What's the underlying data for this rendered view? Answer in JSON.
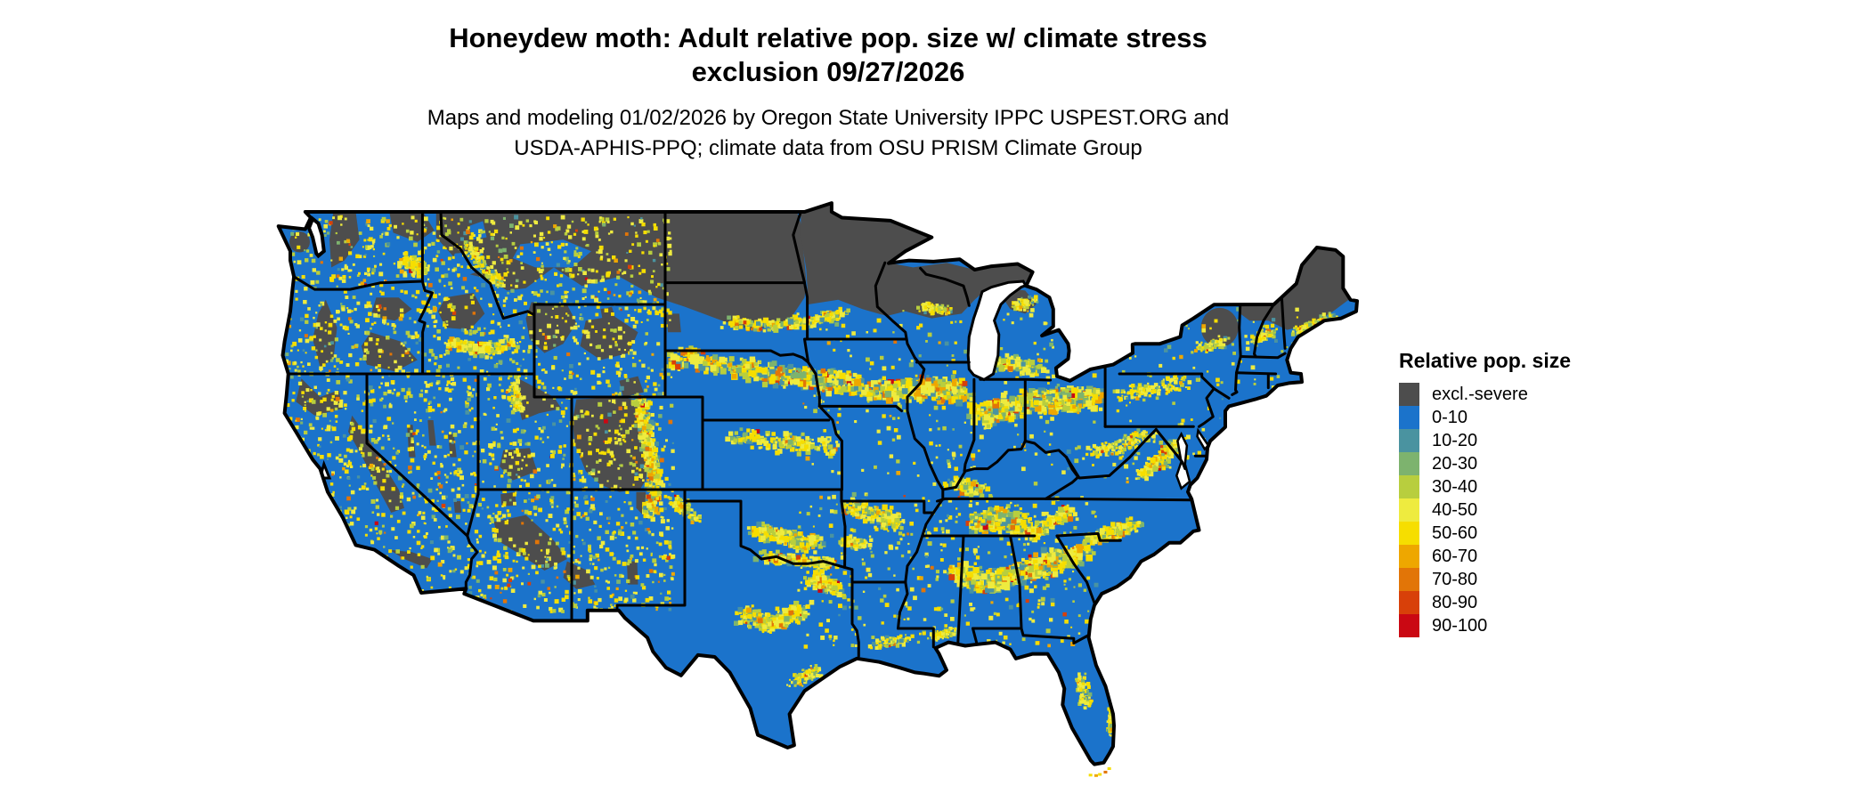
{
  "title": {
    "line1": "Honeydew moth: Adult relative pop. size w/ climate stress",
    "line2": "exclusion 09/27/2026"
  },
  "subtitle": {
    "line1": "Maps and modeling 01/02/2026 by Oregon State University IPPC USPEST.ORG and",
    "line2": "USDA-APHIS-PPQ; climate data from OSU PRISM Climate Group"
  },
  "legend": {
    "title": "Relative pop. size",
    "items": [
      {
        "label": "excl.-severe",
        "color": "#4D4D4D"
      },
      {
        "label": "0-10",
        "color": "#1B73CB"
      },
      {
        "label": "10-20",
        "color": "#4A93A0"
      },
      {
        "label": "20-30",
        "color": "#7DB36E"
      },
      {
        "label": "30-40",
        "color": "#B8CE3E"
      },
      {
        "label": "40-50",
        "color": "#EEEB3F"
      },
      {
        "label": "50-60",
        "color": "#F6DE00"
      },
      {
        "label": "60-70",
        "color": "#EEA700"
      },
      {
        "label": "70-80",
        "color": "#E27507"
      },
      {
        "label": "80-90",
        "color": "#D84009"
      },
      {
        "label": "90-100",
        "color": "#CA0813"
      }
    ]
  },
  "map": {
    "region": "Contiguous United States",
    "dominant_class": "0-10",
    "excluded_class": "excl.-severe",
    "land_color": "#1B73CB",
    "excluded_color": "#4D4D4D",
    "boundary_color": "#000000",
    "water_color": "#FFFFFF"
  }
}
